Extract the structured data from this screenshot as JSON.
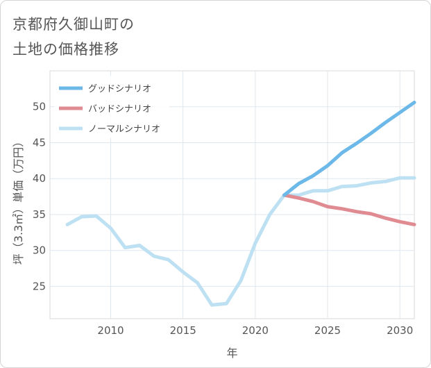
{
  "header": {
    "title_line1": "京都府久御山町の",
    "title_line2": "土地の価格推移"
  },
  "chart_data": {
    "type": "line",
    "title": "京都府久御山町の土地の価格推移",
    "xlabel": "年",
    "ylabel": "坪（3.3㎡）単価（万円）",
    "xlim": [
      2005.8,
      2031
    ],
    "ylim": [
      20.5,
      55
    ],
    "xticks": [
      2010,
      2015,
      2020,
      2025,
      2030
    ],
    "yticks": [
      25,
      30,
      35,
      40,
      45,
      50
    ],
    "grid": true,
    "legend_position": "top-left",
    "series": [
      {
        "name": "グッドシナリオ",
        "color": "#6cb8e8",
        "x": [
          2022,
          2023,
          2024,
          2025,
          2026,
          2027,
          2028,
          2029,
          2030,
          2031
        ],
        "values": [
          37.7,
          39.3,
          40.4,
          41.8,
          43.6,
          44.9,
          46.3,
          47.8,
          49.2,
          50.6
        ]
      },
      {
        "name": "バッドシナリオ",
        "color": "#e08b92",
        "x": [
          2022,
          2023,
          2024,
          2025,
          2026,
          2027,
          2028,
          2029,
          2030,
          2031
        ],
        "values": [
          37.7,
          37.3,
          36.8,
          36.1,
          35.8,
          35.4,
          35.1,
          34.5,
          34.0,
          33.6
        ]
      },
      {
        "name": "ノーマルシナリオ",
        "color": "#bde0f2",
        "x": [
          2007,
          2008,
          2009,
          2010,
          2011,
          2012,
          2013,
          2014,
          2015,
          2016,
          2017,
          2018,
          2019,
          2020,
          2021,
          2022,
          2023,
          2024,
          2025,
          2026,
          2027,
          2028,
          2029,
          2030,
          2031
        ],
        "values": [
          33.6,
          34.7,
          34.8,
          33.1,
          30.4,
          30.7,
          29.2,
          28.7,
          27.0,
          25.5,
          22.4,
          22.6,
          25.8,
          31.0,
          35.0,
          37.7,
          37.7,
          38.3,
          38.3,
          38.9,
          39.0,
          39.4,
          39.6,
          40.1,
          40.1
        ]
      }
    ]
  }
}
